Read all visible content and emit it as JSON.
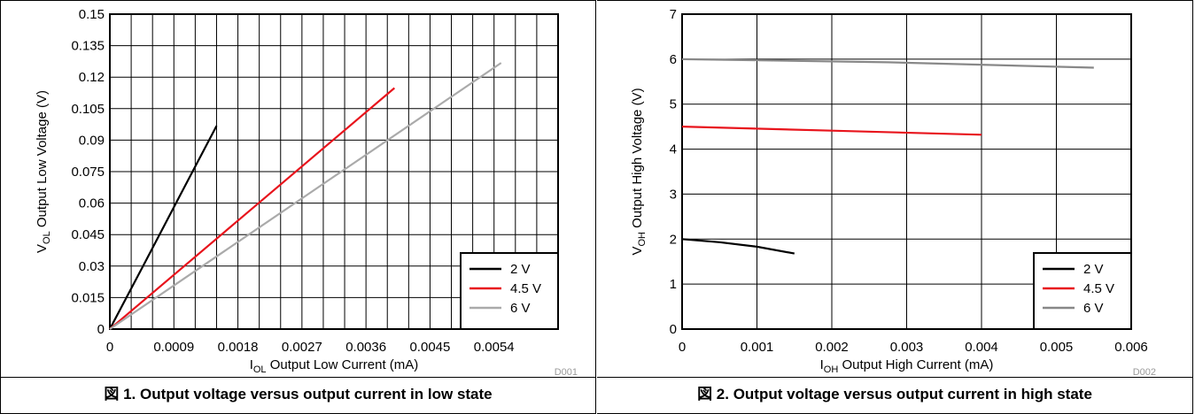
{
  "figures": [
    {
      "caption": "図 1. Output voltage versus output current in low state",
      "code": "D001",
      "xlabel_main": "I",
      "xlabel_sub": "OL",
      "xlabel_rest": " Output Low Current (mA)",
      "ylabel_main": "V",
      "ylabel_sub": "OL",
      "ylabel_rest": " Output Low Voltage (V)"
    },
    {
      "caption": "図 2. Output voltage versus output current in high state",
      "code": "D002",
      "xlabel_main": "I",
      "xlabel_sub": "OH",
      "xlabel_rest": " Output High Current (mA)",
      "ylabel_main": "V",
      "ylabel_sub": "OH",
      "ylabel_rest": " Output High Voltage (V)"
    }
  ],
  "chart_data": [
    {
      "type": "line",
      "title": "",
      "xlim": [
        0,
        0.0063
      ],
      "ylim": [
        0,
        0.15
      ],
      "xticks": [
        0,
        0.0009,
        0.0018,
        0.0027,
        0.0036,
        0.0045,
        0.0054
      ],
      "xtick_labels": [
        "0",
        "0.0009",
        "0.0018",
        "0.0027",
        "0.0036",
        "0.0045",
        "0.0054"
      ],
      "yticks": [
        0,
        0.015,
        0.03,
        0.045,
        0.06,
        0.075,
        0.09,
        0.105,
        0.12,
        0.135,
        0.15
      ],
      "ytick_labels": [
        "0",
        "0.015",
        "0.03",
        "0.045",
        "0.06",
        "0.075",
        "0.09",
        "0.105",
        "0.12",
        "0.135",
        "0.15"
      ],
      "minor_x_step": 0.0003,
      "grid": true,
      "legend_position": "bottom-right",
      "series": [
        {
          "name": "2 V",
          "color": "#000000",
          "x": [
            0,
            0.0005,
            0.001,
            0.0015
          ],
          "y": [
            0,
            0.0322,
            0.0645,
            0.0968
          ]
        },
        {
          "name": "4.5 V",
          "color": "#e8141c",
          "x": [
            0,
            0.002,
            0.004
          ],
          "y": [
            0,
            0.0574,
            0.1148
          ]
        },
        {
          "name": "6 V",
          "color": "#aaaaaa",
          "x": [
            0,
            0.00275,
            0.0055
          ],
          "y": [
            0,
            0.0634,
            0.1268
          ]
        }
      ]
    },
    {
      "type": "line",
      "title": "",
      "xlim": [
        0,
        0.006
      ],
      "ylim": [
        0,
        7
      ],
      "xticks": [
        0,
        0.001,
        0.002,
        0.003,
        0.004,
        0.005,
        0.006
      ],
      "xtick_labels": [
        "0",
        "0.001",
        "0.002",
        "0.003",
        "0.004",
        "0.005",
        "0.006"
      ],
      "yticks": [
        0,
        1,
        2,
        3,
        4,
        5,
        6,
        7
      ],
      "ytick_labels": [
        "0",
        "1",
        "2",
        "3",
        "4",
        "5",
        "6",
        "7"
      ],
      "grid": true,
      "legend_position": "bottom-right",
      "series": [
        {
          "name": "2 V",
          "color": "#000000",
          "x": [
            0,
            0.0005,
            0.001,
            0.0015
          ],
          "y": [
            2.0,
            1.93,
            1.83,
            1.68
          ]
        },
        {
          "name": "4.5 V",
          "color": "#e8141c",
          "x": [
            0,
            0.002,
            0.004
          ],
          "y": [
            4.5,
            4.41,
            4.32
          ]
        },
        {
          "name": "6 V",
          "color": "#888888",
          "x": [
            0,
            0.00275,
            0.0055
          ],
          "y": [
            6.0,
            5.93,
            5.81
          ]
        }
      ]
    }
  ]
}
